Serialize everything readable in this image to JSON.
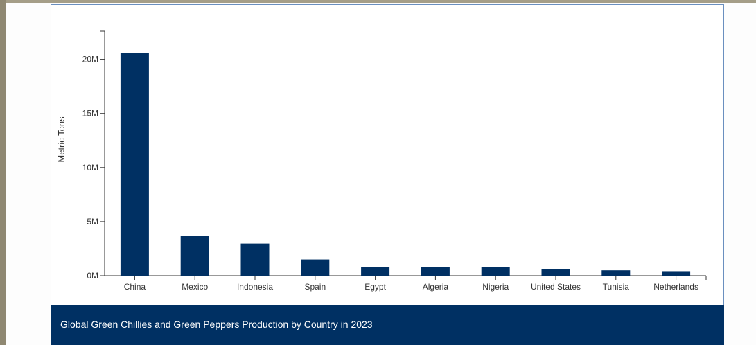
{
  "chart_data": {
    "type": "bar",
    "title": "Global Green Chillies and Green Peppers Production by Country in 2023",
    "ylabel": "Metric Tons",
    "xlabel": "",
    "categories": [
      "China",
      "Mexico",
      "Indonesia",
      "Spain",
      "Egypt",
      "Algeria",
      "Nigeria",
      "United States",
      "Tunisia",
      "Netherlands"
    ],
    "values": [
      20600000,
      3700000,
      2970000,
      1500000,
      830000,
      790000,
      780000,
      600000,
      500000,
      420000
    ],
    "ylim": [
      0,
      22600000
    ],
    "yticks": [
      0,
      5000000,
      10000000,
      15000000,
      20000000
    ],
    "ytick_labels": [
      "0M",
      "5M",
      "10M",
      "15M",
      "20M"
    ],
    "grid": false,
    "bar_color": "#003063"
  }
}
